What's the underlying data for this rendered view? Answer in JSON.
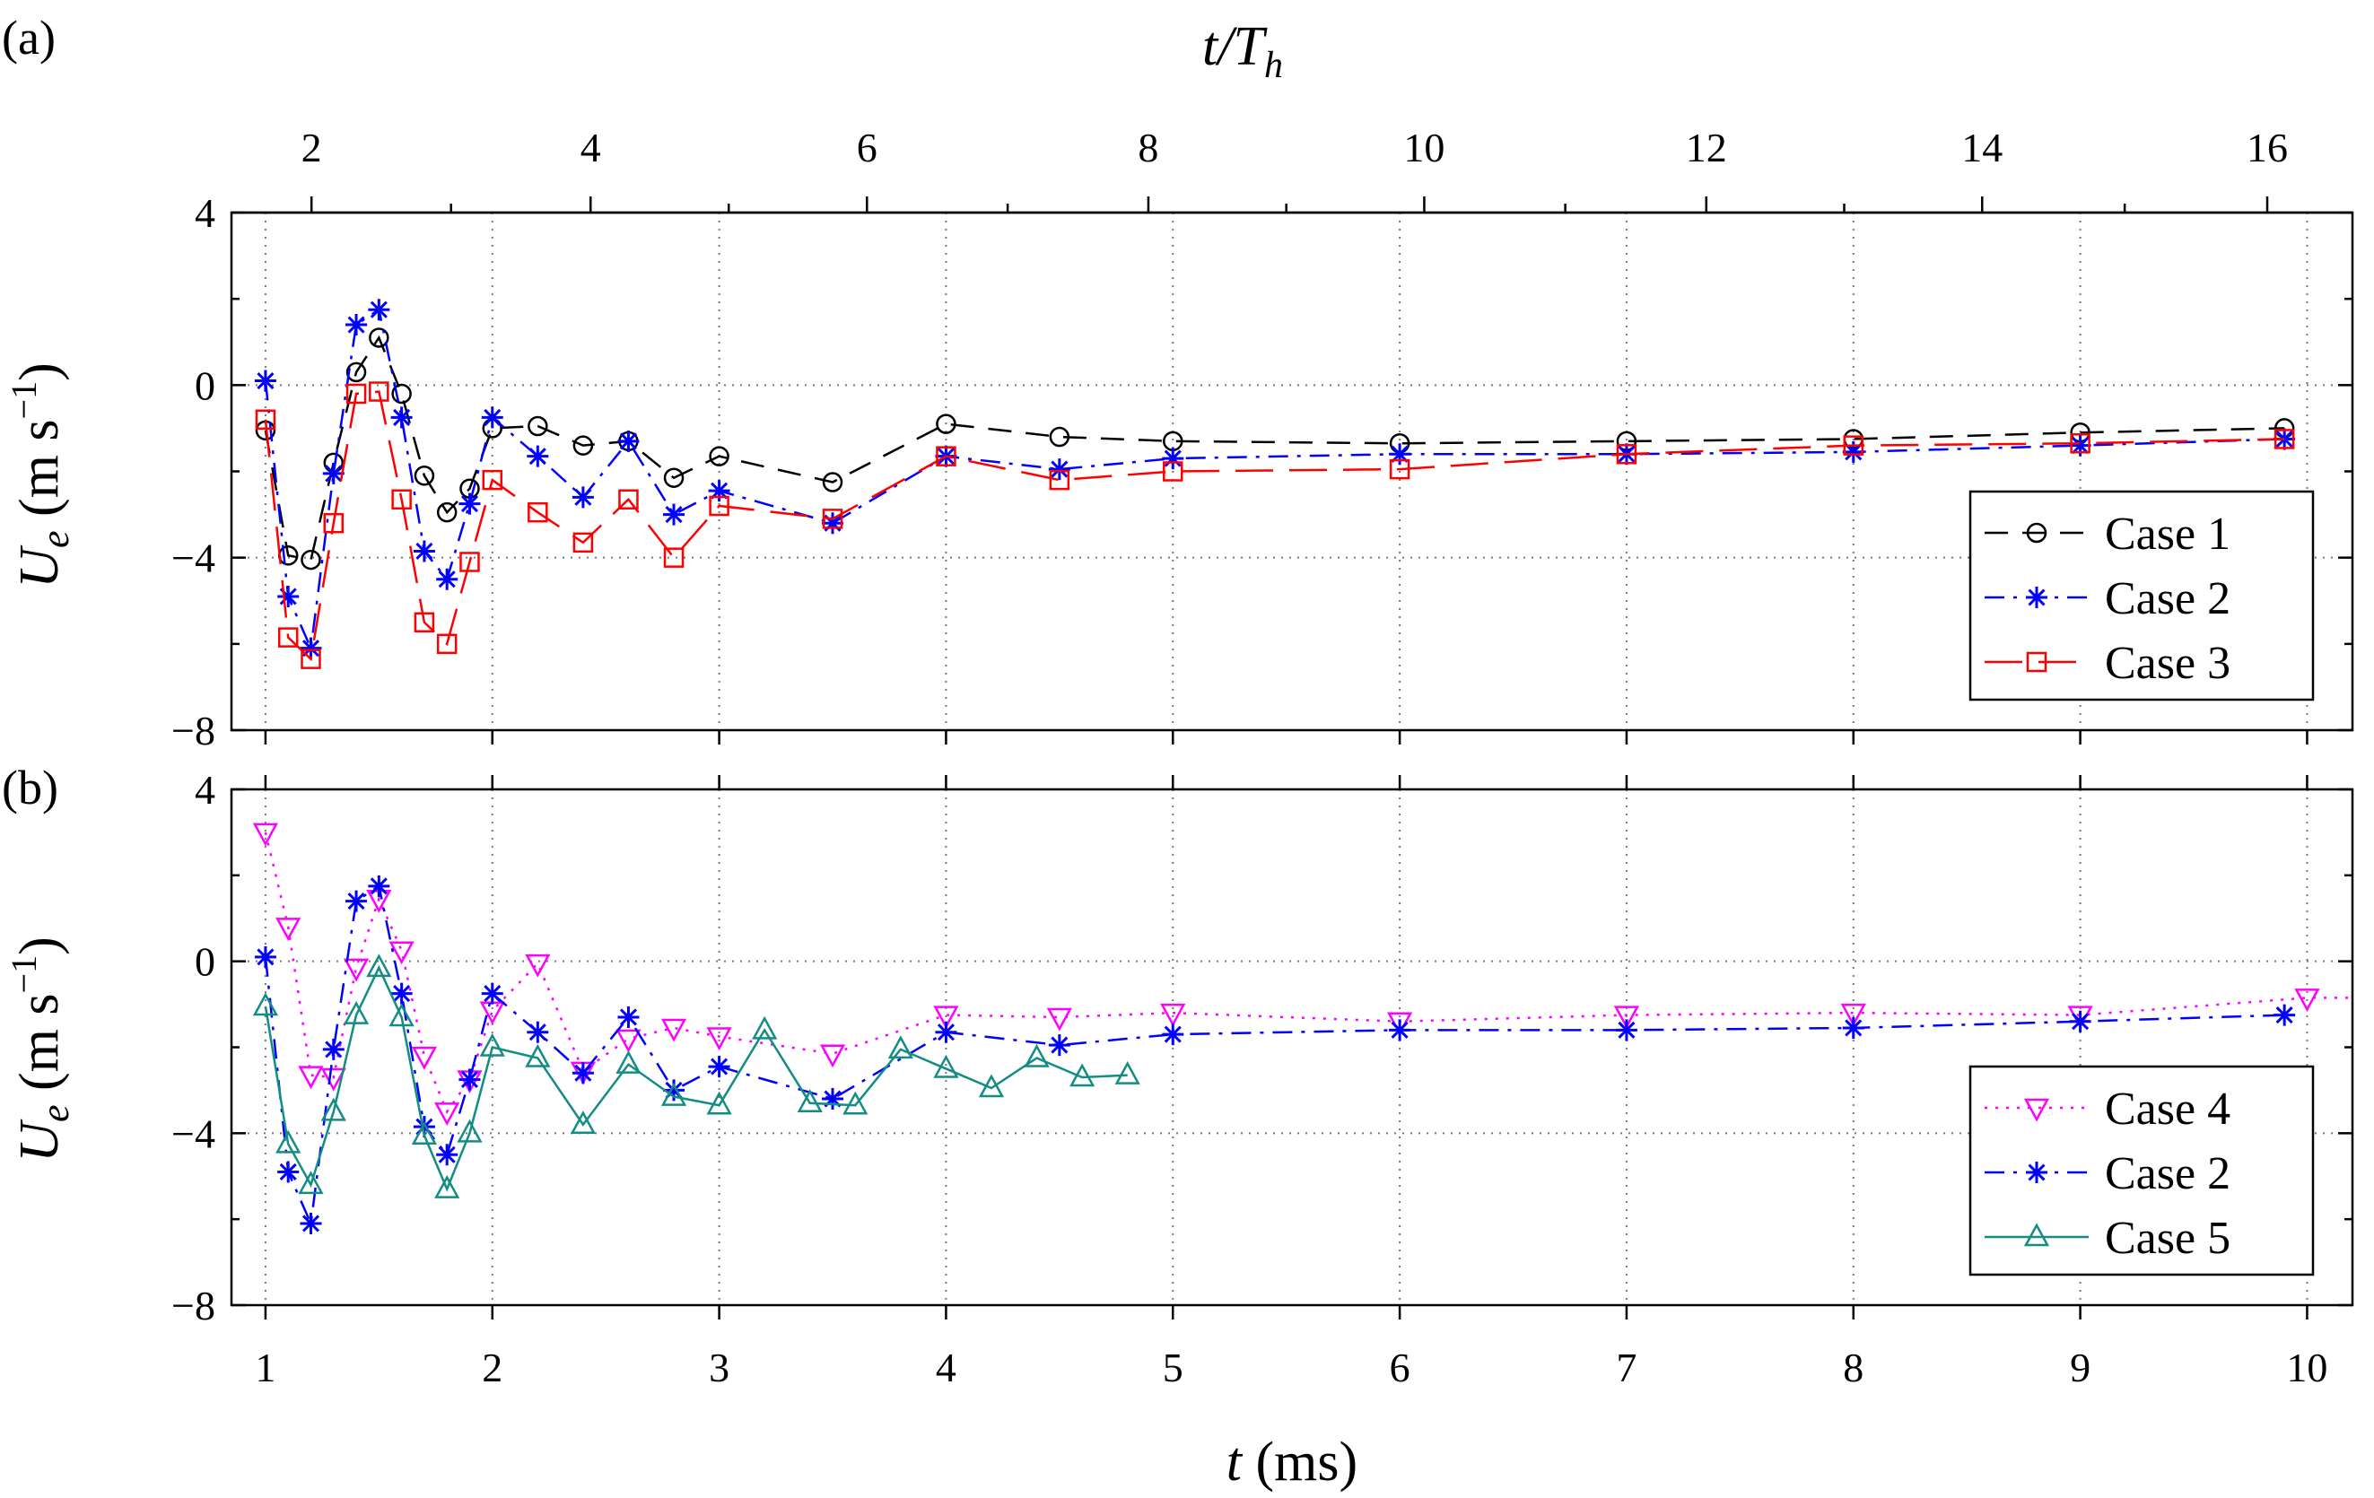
{
  "chart_data": {
    "type": "line",
    "top_axis": {
      "label_italic": "t/T",
      "label_sub": "h",
      "ticks": [
        {
          "v": 2,
          "t": 1.2027
        },
        {
          "v": 4,
          "t": 2.433
        },
        {
          "v": 6,
          "t": 3.6514
        },
        {
          "v": 8,
          "t": 4.8919
        },
        {
          "v": 10,
          "t": 6.1081
        },
        {
          "v": 12,
          "t": 7.3514
        },
        {
          "v": 14,
          "t": 8.5676
        },
        {
          "v": 16,
          "t": 9.8243
        }
      ],
      "label_texts": [
        "2",
        "4",
        "6",
        "8",
        "10",
        "12",
        "14",
        "16"
      ]
    },
    "xlabel": {
      "italic": "t",
      "unit": " (ms)"
    },
    "xlim": [
      0.85,
      10.2
    ],
    "xticks": [
      1,
      2,
      3,
      4,
      5,
      6,
      7,
      8,
      9,
      10
    ],
    "xtick_labels": [
      "1",
      "2",
      "3",
      "4",
      "5",
      "6",
      "7",
      "8",
      "9",
      "10"
    ],
    "ylim": [
      -8,
      4
    ],
    "yticks": [
      4,
      0,
      -4,
      -8
    ],
    "ytick_labels": [
      "4",
      "0",
      "−4",
      "−8"
    ],
    "ylabel": {
      "main": "U",
      "sub": "e",
      "unit_open": " (m s",
      "unit_sup": "−1",
      "unit_close": ")"
    },
    "panels": [
      {
        "tag": "(a)",
        "series": [
          {
            "name": "Case 1",
            "color": "#000000",
            "marker": "circle",
            "dash": "dash",
            "x": [
              1.0,
              1.1,
              1.2,
              1.3,
              1.4,
              1.5,
              1.6,
              1.7,
              1.8,
              1.9,
              2.0,
              2.2,
              2.4,
              2.6,
              2.8,
              3.0,
              3.5,
              4.0,
              4.5,
              5.0,
              6.0,
              7.0,
              8.0,
              9.0,
              9.9
            ],
            "y": [
              -1.05,
              -3.95,
              -4.05,
              -1.8,
              0.3,
              1.1,
              -0.2,
              -2.1,
              -2.95,
              -2.4,
              -1.0,
              -0.95,
              -1.4,
              -1.3,
              -2.15,
              -1.65,
              -2.25,
              -0.9,
              -1.2,
              -1.3,
              -1.35,
              -1.3,
              -1.25,
              -1.1,
              -1.0
            ]
          },
          {
            "name": "Case 2",
            "color": "#0000ff",
            "marker": "star",
            "dash": "dashdot",
            "x": [
              1.0,
              1.1,
              1.2,
              1.3,
              1.4,
              1.5,
              1.6,
              1.7,
              1.8,
              1.9,
              2.0,
              2.2,
              2.4,
              2.6,
              2.8,
              3.0,
              3.5,
              4.0,
              4.5,
              5.0,
              6.0,
              7.0,
              8.0,
              9.0,
              9.9
            ],
            "y": [
              0.1,
              -4.9,
              -6.1,
              -2.05,
              1.4,
              1.75,
              -0.75,
              -3.85,
              -4.5,
              -2.75,
              -0.75,
              -1.65,
              -2.6,
              -1.3,
              -3.0,
              -2.45,
              -3.2,
              -1.65,
              -1.95,
              -1.7,
              -1.6,
              -1.6,
              -1.55,
              -1.4,
              -1.25
            ]
          },
          {
            "name": "Case 3",
            "color": "#ff0000",
            "marker": "square",
            "dash": "longdash",
            "x": [
              1.0,
              1.1,
              1.2,
              1.3,
              1.4,
              1.5,
              1.6,
              1.7,
              1.8,
              1.9,
              2.0,
              2.2,
              2.4,
              2.6,
              2.8,
              3.0,
              3.5,
              4.0,
              4.5,
              5.0,
              6.0,
              7.0,
              8.0,
              9.0,
              9.9
            ],
            "y": [
              -0.8,
              -5.85,
              -6.35,
              -3.2,
              -0.2,
              -0.15,
              -2.65,
              -5.5,
              -6.0,
              -4.1,
              -2.2,
              -2.95,
              -3.65,
              -2.65,
              -4.0,
              -2.8,
              -3.1,
              -1.65,
              -2.2,
              -2.0,
              -1.95,
              -1.6,
              -1.4,
              -1.35,
              -1.25
            ]
          }
        ],
        "legend": {
          "loc": "lower right",
          "entries": [
            "Case 1",
            "Case 2",
            "Case 3"
          ]
        }
      },
      {
        "tag": "(b)",
        "series": [
          {
            "name": "Case 4",
            "color": "#ff00ff",
            "marker": "triangle-down",
            "dash": "dot",
            "x": [
              1.0,
              1.1,
              1.2,
              1.3,
              1.4,
              1.5,
              1.6,
              1.7,
              1.8,
              1.9,
              2.0,
              2.2,
              2.4,
              2.6,
              2.8,
              3.0,
              3.5,
              4.0,
              4.5,
              5.0,
              6.0,
              7.0,
              8.0,
              9.0,
              10.0,
              10.2
            ],
            "y": [
              3.0,
              0.8,
              -2.65,
              -2.7,
              -0.15,
              1.45,
              0.25,
              -2.2,
              -3.5,
              -2.75,
              -1.15,
              -0.05,
              -2.55,
              -1.8,
              -1.55,
              -1.75,
              -2.15,
              -1.25,
              -1.3,
              -1.2,
              -1.4,
              -1.25,
              -1.2,
              -1.25,
              -0.85,
              -0.85
            ]
          },
          {
            "name": "Case 2",
            "color": "#0000ff",
            "marker": "star",
            "dash": "dashdot",
            "x": [
              1.0,
              1.1,
              1.2,
              1.3,
              1.4,
              1.5,
              1.6,
              1.7,
              1.8,
              1.9,
              2.0,
              2.2,
              2.4,
              2.6,
              2.8,
              3.0,
              3.5,
              4.0,
              4.5,
              5.0,
              6.0,
              7.0,
              8.0,
              9.0,
              9.9
            ],
            "y": [
              0.1,
              -4.9,
              -6.1,
              -2.05,
              1.4,
              1.75,
              -0.75,
              -3.85,
              -4.5,
              -2.75,
              -0.75,
              -1.65,
              -2.6,
              -1.3,
              -3.0,
              -2.45,
              -3.2,
              -1.65,
              -1.95,
              -1.7,
              -1.6,
              -1.6,
              -1.55,
              -1.4,
              -1.25
            ]
          },
          {
            "name": "Case 5",
            "color": "#138c84",
            "marker": "triangle-up",
            "dash": "solid",
            "x": [
              1.0,
              1.1,
              1.2,
              1.3,
              1.4,
              1.5,
              1.6,
              1.7,
              1.8,
              1.9,
              2.0,
              2.2,
              2.4,
              2.6,
              2.8,
              3.0,
              3.2,
              3.4,
              3.6,
              3.8,
              4.0,
              4.2,
              4.4,
              4.6,
              4.8
            ],
            "y": [
              -1.05,
              -4.25,
              -5.2,
              -3.5,
              -1.25,
              -0.15,
              -1.3,
              -4.05,
              -5.3,
              -4.0,
              -2.0,
              -2.25,
              -3.8,
              -2.4,
              -3.15,
              -3.35,
              -1.6,
              -3.3,
              -3.35,
              -2.05,
              -2.5,
              -2.95,
              -2.25,
              -2.7,
              -2.65
            ]
          }
        ],
        "legend": {
          "loc": "lower right",
          "entries": [
            "Case 4",
            "Case 2",
            "Case 5"
          ]
        }
      }
    ]
  }
}
